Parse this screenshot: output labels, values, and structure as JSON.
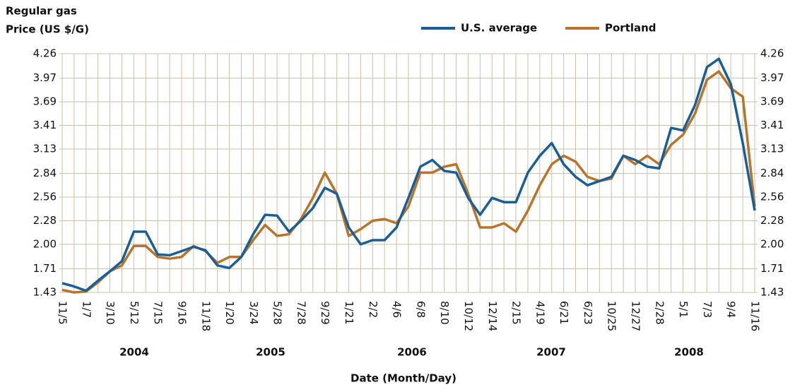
{
  "chart_data": {
    "type": "line",
    "y_label": [
      "Regular gas",
      "Price (US $/G)"
    ],
    "x_label": "Date (Month/Day)",
    "year_labels": [
      "2004",
      "2005",
      "2006",
      "2007",
      "2008"
    ],
    "categories": [
      "11/5",
      null,
      "1/7",
      null,
      "3/10",
      null,
      "5/12",
      null,
      "7/15",
      null,
      "9/16",
      null,
      "11/18",
      null,
      "1/20",
      null,
      "3/24",
      null,
      "5/28",
      null,
      "7/28",
      null,
      "9/29",
      null,
      "1/21",
      null,
      "2/2",
      null,
      "4/6",
      null,
      "6/8",
      null,
      "8/10",
      null,
      "10/12",
      null,
      "12/14",
      null,
      "2/15",
      null,
      "4/19",
      null,
      "6/21",
      null,
      "6/23",
      null,
      "10/25",
      null,
      "12/27",
      null,
      "2/28",
      null,
      "5/1",
      null,
      "7/3",
      null,
      "9/4",
      null,
      "11/16"
    ],
    "series": [
      {
        "name": "U.S. average",
        "color": "#1a5e96",
        "values": [
          1.54,
          1.5,
          1.45,
          1.57,
          1.68,
          1.8,
          2.15,
          2.15,
          1.88,
          1.87,
          1.92,
          1.97,
          1.93,
          1.75,
          1.72,
          1.85,
          2.12,
          2.35,
          2.34,
          2.15,
          2.28,
          2.43,
          2.67,
          2.6,
          2.2,
          2.0,
          2.05,
          2.05,
          2.2,
          2.55,
          2.92,
          3.0,
          2.87,
          2.85,
          2.55,
          2.35,
          2.55,
          2.5,
          2.5,
          2.85,
          3.05,
          3.2,
          2.95,
          2.8,
          2.7,
          2.75,
          2.8,
          3.05,
          3.0,
          2.92,
          2.9,
          3.38,
          3.35,
          3.65,
          4.1,
          4.2,
          3.9,
          3.2,
          2.4
        ]
      },
      {
        "name": "Portland",
        "color": "#b8742a",
        "values": [
          1.46,
          1.43,
          1.44,
          1.55,
          1.68,
          1.75,
          1.98,
          1.98,
          1.85,
          1.83,
          1.85,
          1.98,
          1.92,
          1.78,
          1.85,
          1.85,
          2.05,
          2.23,
          2.1,
          2.12,
          2.3,
          2.55,
          2.85,
          2.6,
          2.1,
          2.18,
          2.28,
          2.3,
          2.25,
          2.45,
          2.85,
          2.85,
          2.92,
          2.95,
          2.6,
          2.2,
          2.2,
          2.25,
          2.15,
          2.4,
          2.7,
          2.95,
          3.05,
          2.98,
          2.8,
          2.75,
          2.78,
          3.05,
          2.95,
          3.05,
          2.95,
          3.18,
          3.3,
          3.55,
          3.95,
          4.05,
          3.85,
          3.75,
          2.45
        ]
      }
    ],
    "ylim": [
      1.43,
      4.26
    ],
    "yticks": [
      1.43,
      1.71,
      {
        "value": 2,
        "label": "2.00"
      },
      2.28,
      2.56,
      2.84,
      3.13,
      3.41,
      3.69,
      3.97,
      4.26
    ],
    "y2lim": [
      1.43,
      4.26
    ],
    "y2ticks": [
      1.43,
      1.71,
      {
        "value": 2,
        "label": "2.00"
      },
      2.28,
      2.56,
      2.84,
      3.13,
      3.41,
      3.69,
      3.97,
      4.26
    ],
    "grid": true,
    "legend": "top"
  }
}
